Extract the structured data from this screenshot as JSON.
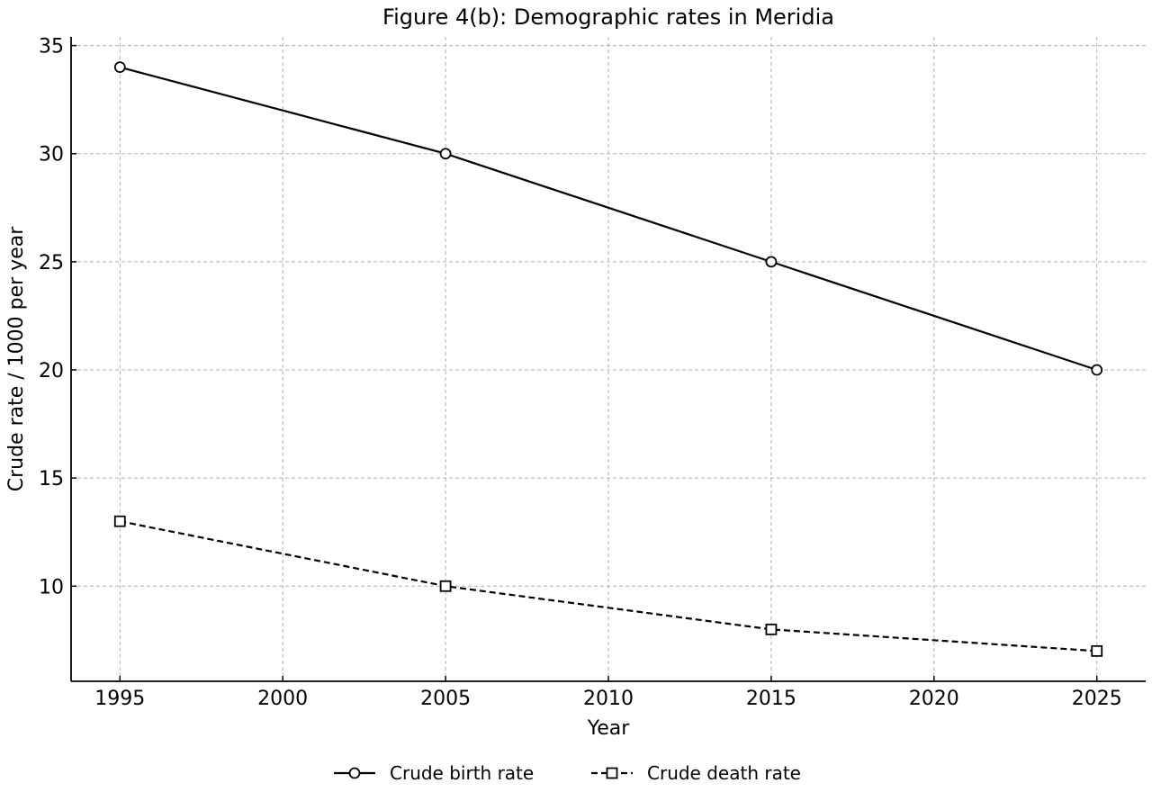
{
  "chart_data": {
    "type": "line",
    "title": "Figure 4(b): Demographic rates in Meridia",
    "xlabel": "Year",
    "ylabel": "Crude rate / 1000 per year",
    "x": [
      1995,
      2005,
      2015,
      2025
    ],
    "xlim": [
      1993.5,
      2026.5
    ],
    "ylim": [
      5.6,
      35.4
    ],
    "xticks": [
      1995,
      2000,
      2005,
      2010,
      2015,
      2020,
      2025
    ],
    "yticks": [
      10,
      15,
      20,
      25,
      30,
      35
    ],
    "xtick_labels": [
      "1995",
      "2000",
      "2005",
      "2010",
      "2015",
      "2020",
      "2025"
    ],
    "ytick_labels": [
      "10",
      "15",
      "20",
      "25",
      "30",
      "35"
    ],
    "grid": true,
    "legend_position": "bottom-center",
    "series": [
      {
        "name": "Crude birth rate",
        "values": [
          34,
          30,
          25,
          20
        ],
        "marker": "circle",
        "linestyle": "solid",
        "color": "#000000"
      },
      {
        "name": "Crude death rate",
        "values": [
          13,
          10,
          8,
          7
        ],
        "marker": "square",
        "linestyle": "dashed",
        "color": "#000000"
      }
    ]
  }
}
